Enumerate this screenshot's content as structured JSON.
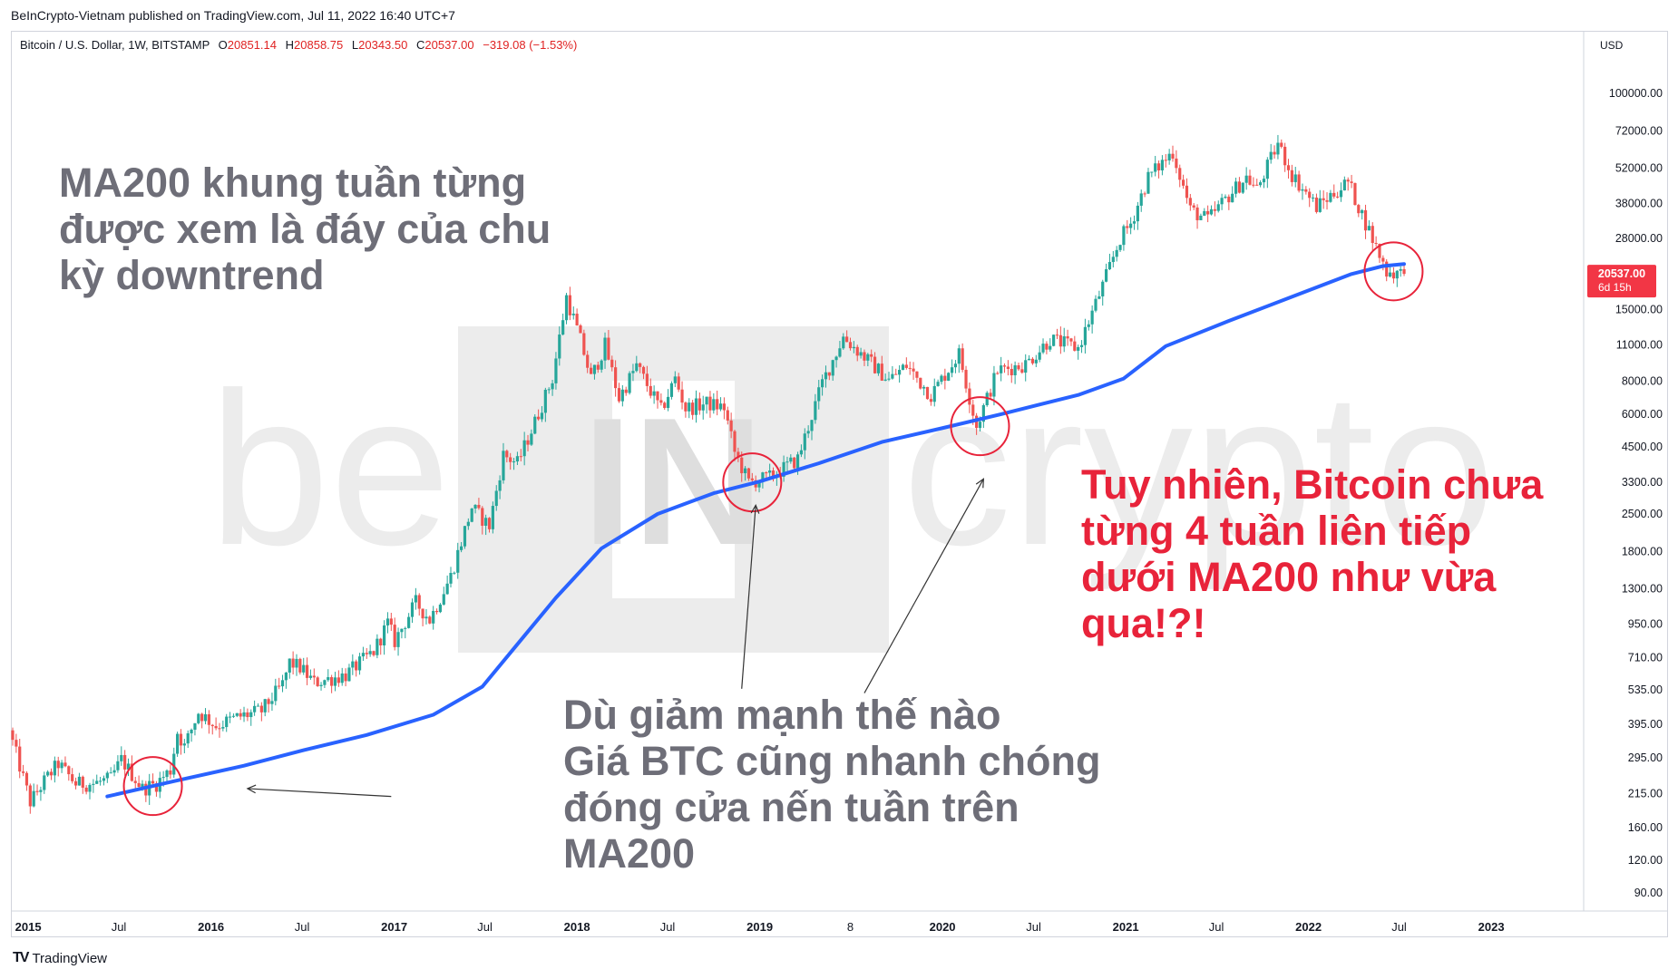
{
  "published": "BeInCrypto-Vietnam published on TradingView.com, Jul 11, 2022 16:40 UTC+7",
  "symbol": {
    "name": "Bitcoin / U.S. Dollar, 1W, BITSTAMP",
    "o_label": "O",
    "o": "20851.14",
    "h_label": "H",
    "h": "20858.75",
    "l_label": "L",
    "l": "20343.50",
    "c_label": "C",
    "c": "20537.00",
    "change": "−319.08 (−1.53%)"
  },
  "price_axis": {
    "currency": "USD",
    "labels": [
      "100000.00",
      "72000.00",
      "52000.00",
      "38000.00",
      "28000.00",
      "15000.00",
      "11000.00",
      "8000.00",
      "6000.00",
      "4500.00",
      "3300.00",
      "2500.00",
      "1800.00",
      "1300.00",
      "950.00",
      "710.00",
      "535.00",
      "395.00",
      "295.00",
      "215.00",
      "160.00",
      "120.00",
      "90.00"
    ],
    "last_price": "20537.00",
    "countdown": "6d 15h"
  },
  "time_axis": {
    "labels": [
      "2015",
      "Jul",
      "2016",
      "Jul",
      "2017",
      "Jul",
      "2018",
      "Jul",
      "2019",
      "8",
      "2020",
      "Jul",
      "2021",
      "Jul",
      "2022",
      "Jul",
      "2023"
    ]
  },
  "watermark": {
    "left": "be",
    "right": "crypto",
    "logo": "IN"
  },
  "annotations": {
    "left": [
      "MA200 khung tuần từng",
      "được xem là đáy của chu",
      "kỳ downtrend"
    ],
    "bottom": [
      "Dù giảm mạnh thế nào",
      "Giá BTC cũng nhanh chóng",
      "đóng cửa nến tuần trên",
      "MA200"
    ],
    "right": [
      "Tuy nhiên, Bitcoin chưa",
      "từng 4 tuần liên tiếp",
      "dưới MA200 như vừa",
      "qua!?!"
    ]
  },
  "footer": {
    "brand": "TradingView",
    "logo": "TV"
  },
  "colors": {
    "up": "#26a69a",
    "down": "#ef5350",
    "ma": "#2962ff",
    "circle": "#e8233a",
    "annot_gray": "#6e6e78",
    "annot_red": "#e8233a",
    "price_badge": "#f23645"
  },
  "chart_data": {
    "type": "candlestick",
    "title": "Bitcoin / U.S. Dollar, 1W, BITSTAMP",
    "scale": "log",
    "ylim": [
      80,
      130000
    ],
    "xlim": [
      "2014-12-01",
      "2023-07-01"
    ],
    "grid": false,
    "anchors": [
      [
        "2014-12-01",
        375
      ],
      [
        "2015-01-12",
        200
      ],
      [
        "2015-02-09",
        240
      ],
      [
        "2015-03-09",
        280
      ],
      [
        "2015-04-13",
        235
      ],
      [
        "2015-05-18",
        235
      ],
      [
        "2015-06-22",
        245
      ],
      [
        "2015-07-13",
        290
      ],
      [
        "2015-08-24",
        225
      ],
      [
        "2015-09-21",
        235
      ],
      [
        "2015-10-19",
        265
      ],
      [
        "2015-11-02",
        370
      ],
      [
        "2015-11-16",
        325
      ],
      [
        "2015-12-14",
        440
      ],
      [
        "2016-01-18",
        390
      ],
      [
        "2016-02-29",
        420
      ],
      [
        "2016-04-18",
        445
      ],
      [
        "2016-05-30",
        560
      ],
      [
        "2016-06-13",
        680
      ],
      [
        "2016-07-04",
        650
      ],
      [
        "2016-08-01",
        570
      ],
      [
        "2016-10-03",
        610
      ],
      [
        "2016-11-28",
        750
      ],
      [
        "2016-12-26",
        960
      ],
      [
        "2017-01-09",
        820
      ],
      [
        "2017-02-20",
        1150
      ],
      [
        "2017-03-20",
        990
      ],
      [
        "2017-05-01",
        1450
      ],
      [
        "2017-06-12",
        2650
      ],
      [
        "2017-07-17",
        2250
      ],
      [
        "2017-08-14",
        4200
      ],
      [
        "2017-09-11",
        3900
      ],
      [
        "2017-10-16",
        5600
      ],
      [
        "2017-11-20",
        8200
      ],
      [
        "2017-12-18",
        16800
      ],
      [
        "2018-01-15",
        11500
      ],
      [
        "2018-02-05",
        8200
      ],
      [
        "2018-03-05",
        11000
      ],
      [
        "2018-04-02",
        6900
      ],
      [
        "2018-05-07",
        9200
      ],
      [
        "2018-06-25",
        6200
      ],
      [
        "2018-07-23",
        8200
      ],
      [
        "2018-08-13",
        6300
      ],
      [
        "2018-09-24",
        6600
      ],
      [
        "2018-10-29",
        6350
      ],
      [
        "2018-11-19",
        4300
      ],
      [
        "2018-12-17",
        3300
      ],
      [
        "2019-01-28",
        3450
      ],
      [
        "2019-03-25",
        4050
      ],
      [
        "2019-05-13",
        7900
      ],
      [
        "2019-06-24",
        11800
      ],
      [
        "2019-07-29",
        10200
      ],
      [
        "2019-09-23",
        8100
      ],
      [
        "2019-10-28",
        9200
      ],
      [
        "2019-12-16",
        7100
      ],
      [
        "2020-02-10",
        10200
      ],
      [
        "2020-03-16",
        5400
      ],
      [
        "2020-04-27",
        8800
      ],
      [
        "2020-06-22",
        9300
      ],
      [
        "2020-08-10",
        11600
      ],
      [
        "2020-10-05",
        10700
      ],
      [
        "2020-11-23",
        18500
      ],
      [
        "2020-12-28",
        28000
      ],
      [
        "2021-01-18",
        32000
      ],
      [
        "2021-02-22",
        48000
      ],
      [
        "2021-04-12",
        60000
      ],
      [
        "2021-05-17",
        36000
      ],
      [
        "2021-06-21",
        33000
      ],
      [
        "2021-07-26",
        39500
      ],
      [
        "2021-09-06",
        48000
      ],
      [
        "2021-09-27",
        43000
      ],
      [
        "2021-11-08",
        64500
      ],
      [
        "2021-12-06",
        49000
      ],
      [
        "2022-01-24",
        37000
      ],
      [
        "2022-03-28",
        46000
      ],
      [
        "2022-05-09",
        30000
      ],
      [
        "2022-06-13",
        21000
      ],
      [
        "2022-07-11",
        20537
      ]
    ],
    "ma200": {
      "name": "MA200",
      "points": [
        [
          "2015-06-08",
          210
        ],
        [
          "2015-10-19",
          240
        ],
        [
          "2016-03-07",
          275
        ],
        [
          "2016-07-04",
          315
        ],
        [
          "2016-11-07",
          360
        ],
        [
          "2017-03-20",
          430
        ],
        [
          "2017-06-26",
          550
        ],
        [
          "2017-09-18",
          860
        ],
        [
          "2017-11-20",
          1200
        ],
        [
          "2018-02-19",
          1850
        ],
        [
          "2018-06-11",
          2500
        ],
        [
          "2018-10-01",
          3000
        ],
        [
          "2018-12-31",
          3320
        ],
        [
          "2019-04-29",
          3900
        ],
        [
          "2019-09-02",
          4700
        ],
        [
          "2019-12-30",
          5300
        ],
        [
          "2020-04-27",
          6000
        ],
        [
          "2020-09-28",
          7100
        ],
        [
          "2020-12-28",
          8200
        ],
        [
          "2021-03-22",
          10900
        ],
        [
          "2021-07-26",
          13600
        ],
        [
          "2021-11-29",
          16800
        ],
        [
          "2022-03-28",
          20500
        ],
        [
          "2022-05-30",
          22000
        ],
        [
          "2022-07-11",
          22400
        ]
      ]
    },
    "circles": [
      [
        "2015-09-07",
        230
      ],
      [
        "2018-12-17",
        3300
      ],
      [
        "2020-03-16",
        5400
      ],
      [
        "2022-06-20",
        21000
      ]
    ],
    "arrows": [
      {
        "from": [
          "2016-12-26",
          210
        ],
        "to": [
          "2016-03-14",
          225
        ]
      },
      {
        "from": [
          "2018-11-26",
          540
        ],
        "to": [
          "2018-12-24",
          2700
        ]
      },
      {
        "from": [
          "2019-07-29",
          520
        ],
        "to": [
          "2020-03-23",
          3400
        ]
      }
    ]
  }
}
